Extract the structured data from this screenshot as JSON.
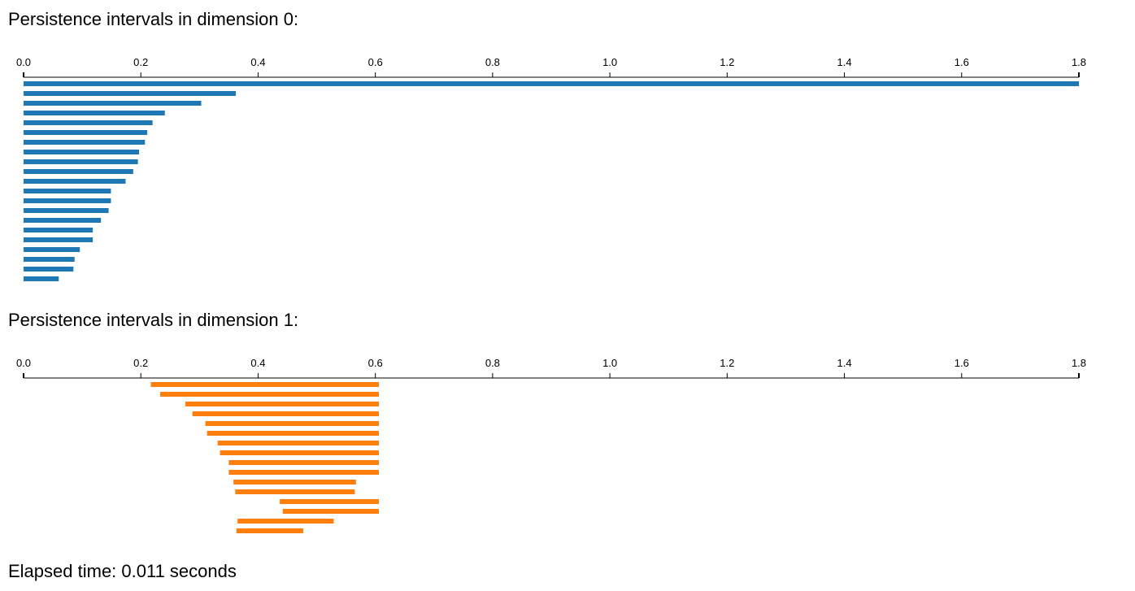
{
  "headings": {
    "dim0": "Persistence intervals in dimension 0:",
    "dim1": "Persistence intervals in dimension 1:"
  },
  "footer": {
    "elapsed": "Elapsed time: 0.011 seconds"
  },
  "colors": {
    "dim0": "#1f77b4",
    "dim1": "#ff7f0e",
    "axis": "#000000"
  },
  "chart_data": [
    {
      "type": "barcode",
      "title": "Persistence intervals in dimension 0:",
      "xlim": [
        0,
        1.8
      ],
      "ticks": [
        "0.0",
        "0.2",
        "0.4",
        "0.6",
        "0.8",
        "1.0",
        "1.2",
        "1.4",
        "1.6",
        "1.8"
      ],
      "tick_values": [
        0,
        0.2,
        0.4,
        0.6,
        0.8,
        1.0,
        1.2,
        1.4,
        1.6,
        1.8
      ],
      "axis_position": "top",
      "color": "#1f77b4",
      "intervals": [
        [
          0,
          1.8
        ],
        [
          0,
          0.362
        ],
        [
          0,
          0.303
        ],
        [
          0,
          0.241
        ],
        [
          0,
          0.22
        ],
        [
          0,
          0.211
        ],
        [
          0,
          0.207
        ],
        [
          0,
          0.197
        ],
        [
          0,
          0.195
        ],
        [
          0,
          0.187
        ],
        [
          0,
          0.174
        ],
        [
          0,
          0.149
        ],
        [
          0,
          0.149
        ],
        [
          0,
          0.145
        ],
        [
          0,
          0.132
        ],
        [
          0,
          0.118
        ],
        [
          0,
          0.118
        ],
        [
          0,
          0.096
        ],
        [
          0,
          0.087
        ],
        [
          0,
          0.085
        ],
        [
          0,
          0.06
        ]
      ]
    },
    {
      "type": "barcode",
      "title": "Persistence intervals in dimension 1:",
      "xlim": [
        0,
        1.8
      ],
      "ticks": [
        "0.0",
        "0.2",
        "0.4",
        "0.6",
        "0.8",
        "1.0",
        "1.2",
        "1.4",
        "1.6",
        "1.8"
      ],
      "tick_values": [
        0,
        0.2,
        0.4,
        0.6,
        0.8,
        1.0,
        1.2,
        1.4,
        1.6,
        1.8
      ],
      "axis_position": "top",
      "color": "#ff7f0e",
      "intervals": [
        [
          0.217,
          0.606
        ],
        [
          0.233,
          0.606
        ],
        [
          0.276,
          0.606
        ],
        [
          0.288,
          0.606
        ],
        [
          0.31,
          0.606
        ],
        [
          0.313,
          0.606
        ],
        [
          0.331,
          0.606
        ],
        [
          0.335,
          0.606
        ],
        [
          0.35,
          0.606
        ],
        [
          0.35,
          0.606
        ],
        [
          0.358,
          0.567
        ],
        [
          0.361,
          0.565
        ],
        [
          0.437,
          0.606
        ],
        [
          0.442,
          0.606
        ],
        [
          0.365,
          0.529
        ],
        [
          0.363,
          0.477
        ]
      ]
    }
  ]
}
